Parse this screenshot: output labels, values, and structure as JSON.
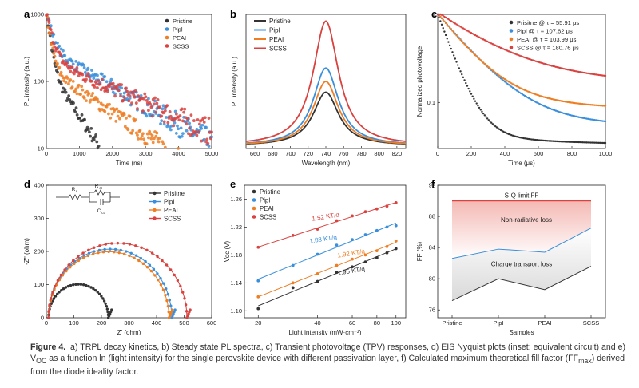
{
  "caption": {
    "label": "Figure 4.",
    "text": "a) TRPL decay kinetics, b) Steady state PL spectra, c) Transient photovoltage (TPV) responses, d) EIS Nyquist plots (inset: equivalent circuit) and e) V",
    "text_sub": "OC",
    "text2": " as a function ln (light intensity) for the single perovskite device with different passivation layer, f) Calculated maximum theoretical fill factor (FF",
    "text2_sub": "max",
    "text3": ") derived from the diode ideality factor."
  },
  "colors": {
    "pristine": "#333333",
    "pipl": "#3a8fdc",
    "peai": "#ef7d22",
    "scss": "#d9423f"
  },
  "chart_data": [
    {
      "panel": "a",
      "type": "scatter",
      "title": "",
      "xlabel": "Time (ns)",
      "ylabel": "PL intensity (a.u.)",
      "xlim": [
        0,
        5000
      ],
      "ylim": [
        10,
        1000
      ],
      "yscale": "log",
      "xticks": [
        "0",
        "1000",
        "2000",
        "3000",
        "4000",
        "5000"
      ],
      "yticks": [
        "10",
        "100",
        "1000"
      ],
      "legend": "top-right",
      "series": [
        {
          "name": "Pristine",
          "color": "#333333",
          "tau": [
            100,
            600
          ],
          "amp": [
            1000,
            160
          ],
          "end": 3000
        },
        {
          "name": "Pipl",
          "color": "#3a8fdc",
          "tau": [
            150,
            1550
          ],
          "amp": [
            860,
            300
          ],
          "end": 5000
        },
        {
          "name": "PEAI",
          "color": "#ef7d22",
          "tau": [
            110,
            1300
          ],
          "amp": [
            900,
            160
          ],
          "end": 5000
        },
        {
          "name": "SCSS",
          "color": "#d9423f",
          "tau": [
            160,
            2000
          ],
          "amp": [
            840,
            210
          ],
          "end": 5000
        }
      ]
    },
    {
      "panel": "b",
      "type": "line",
      "title": "",
      "xlabel": "Wavelength (nm)",
      "ylabel": "PL intensity (a.u.)",
      "xlim": [
        650,
        830
      ],
      "xticks": [
        "660",
        "680",
        "700",
        "720",
        "740",
        "760",
        "780",
        "800",
        "820"
      ],
      "legend": "top-left",
      "series": [
        {
          "name": "Pristine",
          "color": "#333333",
          "peak": 740,
          "height": 0.4
        },
        {
          "name": "Pipl",
          "color": "#3a8fdc",
          "peak": 740,
          "height": 0.58
        },
        {
          "name": "PEAI",
          "color": "#ef7d22",
          "peak": 740,
          "height": 0.48
        },
        {
          "name": "SCSS",
          "color": "#d9423f",
          "peak": 740,
          "height": 0.93
        }
      ]
    },
    {
      "panel": "c",
      "type": "scatter",
      "title": "",
      "xlabel": "Time (μs)",
      "ylabel": "Normalized photovoltage",
      "xlim": [
        0,
        1000
      ],
      "ylim": [
        0.03,
        1
      ],
      "yscale": "log",
      "xticks": [
        "0",
        "200",
        "400",
        "600",
        "800",
        "1000"
      ],
      "yticks": [
        "0.1",
        "1"
      ],
      "legend": "top-right",
      "series": [
        {
          "name": "Prisitne @ τ = 55.91 μs",
          "color": "#333333",
          "y_end": 0.032
        },
        {
          "name": "Pipl @ τ = 107.62 μs",
          "color": "#3a8fdc",
          "y_end": 0.052
        },
        {
          "name": "PEAI @ τ = 103.99 μs",
          "color": "#ef7d22",
          "y_end": 0.082
        },
        {
          "name": "SCSS @ τ = 180.76 μs",
          "color": "#d9423f",
          "y_end": 0.16
        }
      ]
    },
    {
      "panel": "d",
      "type": "scatter",
      "title": "",
      "xlabel": "Z' (ohm)",
      "ylabel": "-Z'' (ohm)",
      "xlim": [
        0,
        600
      ],
      "ylim": [
        0,
        400
      ],
      "xticks": [
        "0",
        "100",
        "200",
        "300",
        "400",
        "500",
        "600"
      ],
      "yticks": [
        "0",
        "100",
        "200",
        "300",
        "400"
      ],
      "legend": "top-right",
      "inset_labels": {
        "rs": "R",
        "rs_sub": "s",
        "rct": "R",
        "rct_sub": "ct",
        "cct": "C",
        "cct_sub": "ct"
      },
      "series": [
        {
          "name": "Prisitne",
          "color": "#333333",
          "z_end": 225,
          "peak": 101
        },
        {
          "name": "PipI",
          "color": "#3a8fdc",
          "z_end": 455,
          "peak": 207
        },
        {
          "name": "PEAI",
          "color": "#ef7d22",
          "z_end": 445,
          "peak": 199
        },
        {
          "name": "SCSS",
          "color": "#d9423f",
          "z_end": 510,
          "peak": 225
        }
      ]
    },
    {
      "panel": "e",
      "type": "scatter",
      "title": "",
      "xlabel": "Light intensity (mW·cm⁻²)",
      "ylabel": "Voc (V)",
      "xlim": [
        20,
        100
      ],
      "ylim": [
        1.09,
        1.28
      ],
      "xscale": "log",
      "xticks": [
        "20",
        "40",
        "60",
        "80",
        "100"
      ],
      "yticks": [
        "1.10",
        "1.14",
        "1.18",
        "1.22",
        "1.26"
      ],
      "legend": "top-left",
      "series": [
        {
          "name": "Pristine",
          "color": "#333333",
          "label": "1.95 KT/q",
          "x": [
            20,
            30,
            40,
            50,
            60,
            70,
            80,
            90,
            100
          ],
          "y": [
            1.103,
            1.133,
            1.142,
            1.155,
            1.163,
            1.17,
            1.176,
            1.183,
            1.189
          ]
        },
        {
          "name": "PipI",
          "color": "#3a8fdc",
          "label": "1.88 KT/q",
          "x": [
            20,
            30,
            40,
            50,
            60,
            70,
            80,
            90,
            100
          ],
          "y": [
            1.143,
            1.165,
            1.181,
            1.194,
            1.202,
            1.209,
            1.215,
            1.22,
            1.222
          ]
        },
        {
          "name": "PEAI",
          "color": "#ef7d22",
          "label": "1.92 KT/q",
          "x": [
            20,
            30,
            40,
            50,
            60,
            70,
            80,
            90,
            100
          ],
          "y": [
            1.12,
            1.14,
            1.153,
            1.165,
            1.174,
            1.18,
            1.186,
            1.192,
            1.2
          ]
        },
        {
          "name": "SCSS",
          "color": "#d9423f",
          "label": "1.52 KT/q",
          "x": [
            20,
            30,
            40,
            50,
            60,
            70,
            80,
            90,
            100
          ],
          "y": [
            1.191,
            1.208,
            1.217,
            1.229,
            1.236,
            1.242,
            1.246,
            1.25,
            1.255
          ]
        }
      ]
    },
    {
      "panel": "f",
      "type": "line",
      "title": "",
      "xlabel": "Samples",
      "ylabel": "FF (%)",
      "ylim": [
        75,
        92
      ],
      "categories": [
        "Pristine",
        "PipI",
        "PEAI",
        "SCSS"
      ],
      "yticks": [
        "76",
        "80",
        "84",
        "88",
        "92"
      ],
      "sq_limit": 90,
      "series": [
        {
          "name": "FF",
          "color": "#333333",
          "values": [
            77.2,
            80.0,
            78.6,
            81.6
          ]
        },
        {
          "name": "FFmax",
          "color": "#3a8fdc",
          "values": [
            82.6,
            83.8,
            83.4,
            86.5
          ]
        }
      ],
      "annotations": [
        "S-Q limit FF",
        "Non-radiative loss",
        "Charge transport loss"
      ]
    }
  ],
  "panels": [
    "a",
    "b",
    "c",
    "d",
    "e",
    "f"
  ]
}
